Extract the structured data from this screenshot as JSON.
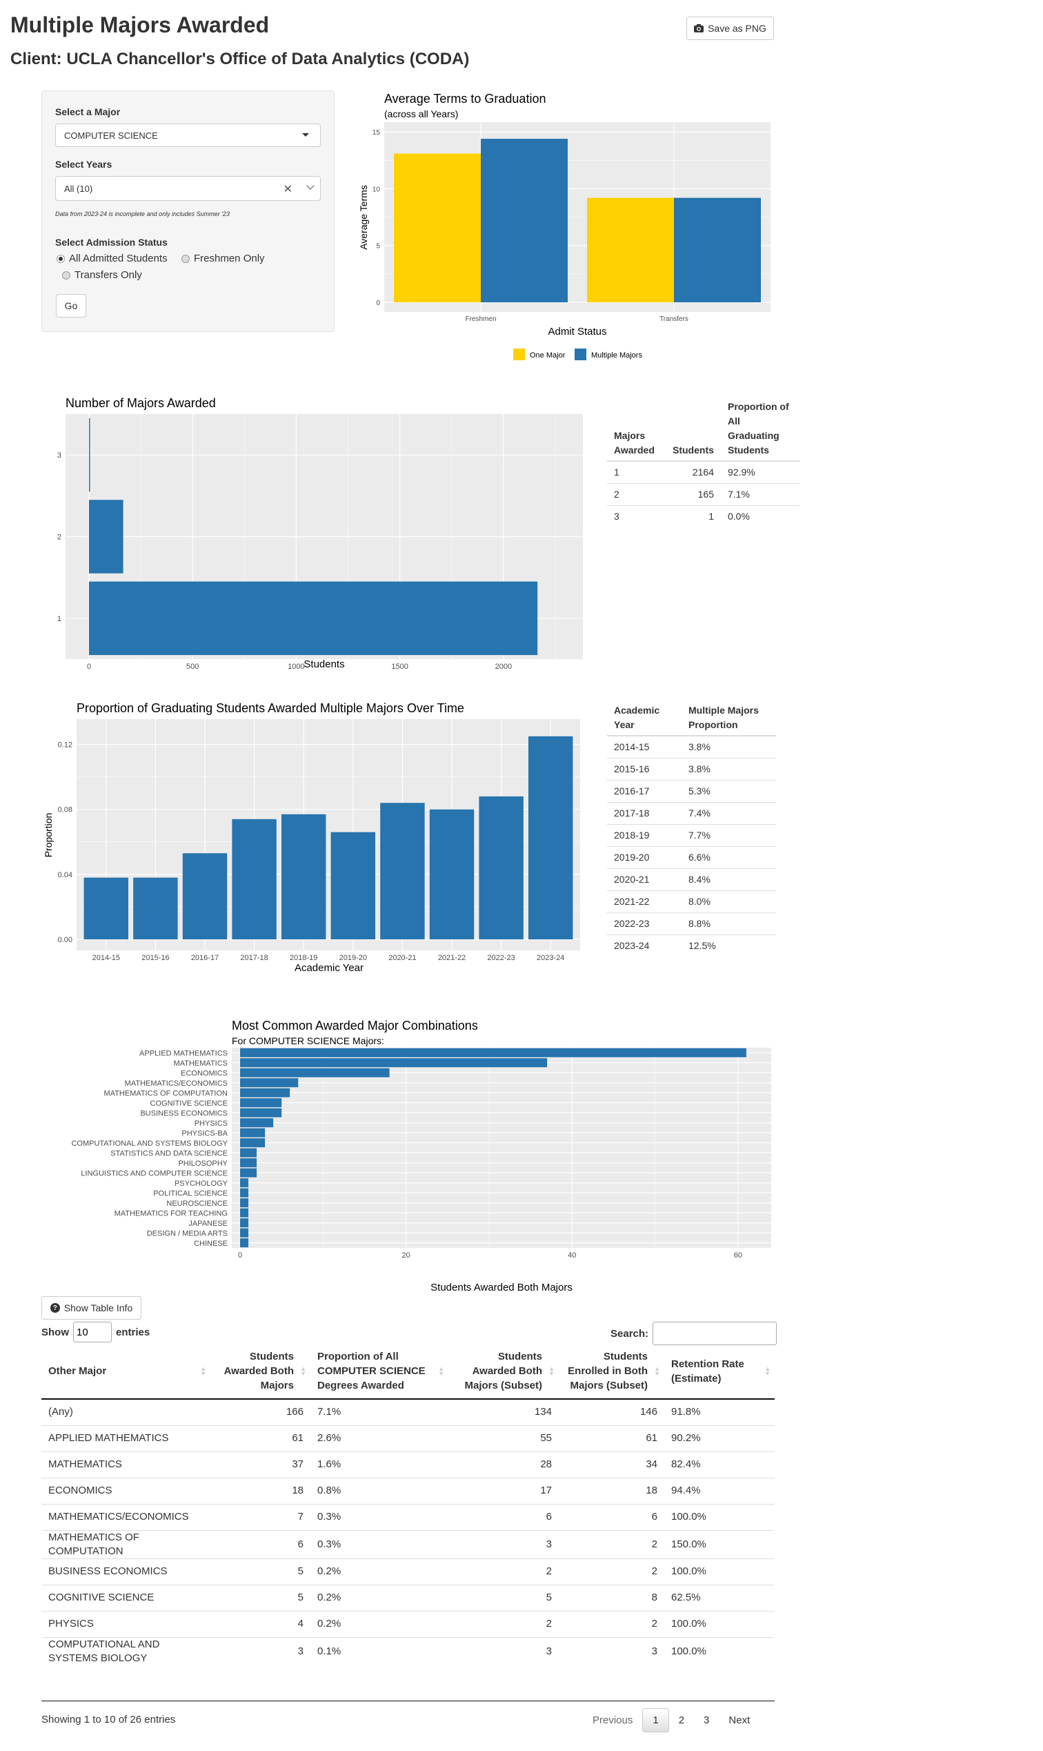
{
  "page": {
    "title": "Multiple Majors Awarded",
    "subtitle": "Client: UCLA Chancellor's Office of Data Analytics (CODA)",
    "save_label": "Save as PNG"
  },
  "sidebar": {
    "major_label": "Select a Major",
    "major_value": "COMPUTER SCIENCE",
    "years_label": "Select Years",
    "years_value": "All (10)",
    "note": "Data from 2023-24 is incomplete and only includes Summer '23",
    "admission_label": "Select Admission Status",
    "options": [
      "All Admitted Students",
      "Freshmen Only",
      "Transfers Only"
    ],
    "selected_option": "All Admitted Students",
    "go_label": "Go"
  },
  "icons": {
    "camera": "camera-icon",
    "caret": "caret-down-icon",
    "clear": "clear-icon",
    "chevron": "chevron-down-icon",
    "question": "question-circle-icon",
    "sort": "sort-icon"
  },
  "colors": {
    "gold": "#FFD100",
    "blue": "#2774AE",
    "panel_bg": "#EBEBEB"
  },
  "chart_data": [
    {
      "type": "bar",
      "title": "Average Terms to Graduation",
      "subtitle": "(across all Years)",
      "xlabel": "Admit Status",
      "ylabel": "Average Terms",
      "categories": [
        "Freshmen",
        "Transfers"
      ],
      "series": [
        {
          "name": "One Major",
          "values": [
            13.1,
            9.2
          ]
        },
        {
          "name": "Multiple Majors",
          "values": [
            14.4,
            9.2
          ]
        }
      ],
      "yticks": [
        "0",
        "5",
        "10",
        "15"
      ],
      "ylim": [
        0,
        15.5
      ],
      "legend": "bottom",
      "grid": true
    },
    {
      "type": "bar",
      "orientation": "horizontal",
      "title": "Number of Majors Awarded",
      "xlabel": "Students",
      "categories": [
        "1",
        "2",
        "3"
      ],
      "values": [
        2164,
        165,
        1
      ],
      "xticks": [
        "0",
        "500",
        "1000",
        "1500",
        "2000"
      ],
      "xlim": [
        0,
        2270
      ],
      "grid": true
    },
    {
      "type": "bar",
      "title": "Proportion of Graduating Students Awarded Multiple Majors Over Time",
      "xlabel": "Academic Year",
      "ylabel": "Proportion",
      "categories": [
        "2014-15",
        "2015-16",
        "2016-17",
        "2017-18",
        "2018-19",
        "2019-20",
        "2020-21",
        "2021-22",
        "2022-23",
        "2023-24"
      ],
      "values": [
        0.038,
        0.038,
        0.053,
        0.074,
        0.077,
        0.066,
        0.084,
        0.08,
        0.088,
        0.125
      ],
      "yticks": [
        "0.00",
        "0.04",
        "0.08",
        "0.12"
      ],
      "ylim": [
        0,
        0.133
      ],
      "grid": true
    },
    {
      "type": "bar",
      "orientation": "horizontal",
      "title": "Most Common Awarded Major Combinations",
      "subtitle": "For COMPUTER SCIENCE Majors:",
      "xlabel": "Students Awarded Both Majors",
      "categories": [
        "APPLIED MATHEMATICS",
        "MATHEMATICS",
        "ECONOMICS",
        "MATHEMATICS/ECONOMICS",
        "MATHEMATICS OF COMPUTATION",
        "COGNITIVE SCIENCE",
        "BUSINESS ECONOMICS",
        "PHYSICS",
        "PHYSICS-BA",
        "COMPUTATIONAL AND SYSTEMS BIOLOGY",
        "STATISTICS AND DATA SCIENCE",
        "PHILOSOPHY",
        "LINGUISTICS AND COMPUTER SCIENCE",
        "PSYCHOLOGY",
        "POLITICAL SCIENCE",
        "NEUROSCIENCE",
        "MATHEMATICS FOR TEACHING",
        "JAPANESE",
        "DESIGN / MEDIA ARTS",
        "CHINESE"
      ],
      "values": [
        61,
        37,
        18,
        7,
        6,
        5,
        5,
        4,
        3,
        3,
        2,
        2,
        2,
        1,
        1,
        1,
        1,
        1,
        1,
        1
      ],
      "xticks": [
        "0",
        "20",
        "40",
        "60"
      ],
      "xlim": [
        -1,
        64
      ],
      "grid": true
    }
  ],
  "majors_table": {
    "headers": [
      "Majors Awarded",
      "Students",
      "Proportion of All Graduating Students"
    ],
    "rows": [
      [
        "1",
        "2164",
        "92.9%"
      ],
      [
        "2",
        "165",
        "7.1%"
      ],
      [
        "3",
        "1",
        "0.0%"
      ]
    ]
  },
  "year_table": {
    "headers": [
      "Academic Year",
      "Multiple Majors Proportion"
    ],
    "rows": [
      [
        "2014-15",
        "3.8%"
      ],
      [
        "2015-16",
        "3.8%"
      ],
      [
        "2016-17",
        "5.3%"
      ],
      [
        "2017-18",
        "7.4%"
      ],
      [
        "2018-19",
        "7.7%"
      ],
      [
        "2019-20",
        "6.6%"
      ],
      [
        "2020-21",
        "8.4%"
      ],
      [
        "2021-22",
        "8.0%"
      ],
      [
        "2022-23",
        "8.8%"
      ],
      [
        "2023-24",
        "12.5%"
      ]
    ]
  },
  "combo_table": {
    "info_label": "Show Table Info",
    "show_label": "Show",
    "entries_value": "10",
    "entries_label": "entries",
    "search_label": "Search:",
    "search_value": "",
    "headers": [
      "Other Major",
      "Students Awarded Both Majors",
      "Proportion of All COMPUTER SCIENCE Degrees Awarded",
      "Students Awarded Both Majors (Subset)",
      "Students Enrolled in Both Majors (Subset)",
      "Retention Rate (Estimate)"
    ],
    "rows": [
      [
        "(Any)",
        "166",
        "7.1%",
        "134",
        "146",
        "91.8%"
      ],
      [
        "APPLIED MATHEMATICS",
        "61",
        "2.6%",
        "55",
        "61",
        "90.2%"
      ],
      [
        "MATHEMATICS",
        "37",
        "1.6%",
        "28",
        "34",
        "82.4%"
      ],
      [
        "ECONOMICS",
        "18",
        "0.8%",
        "17",
        "18",
        "94.4%"
      ],
      [
        "MATHEMATICS/ECONOMICS",
        "7",
        "0.3%",
        "6",
        "6",
        "100.0%"
      ],
      [
        "MATHEMATICS OF COMPUTATION",
        "6",
        "0.3%",
        "3",
        "2",
        "150.0%"
      ],
      [
        "BUSINESS ECONOMICS",
        "5",
        "0.2%",
        "2",
        "2",
        "100.0%"
      ],
      [
        "COGNITIVE SCIENCE",
        "5",
        "0.2%",
        "5",
        "8",
        "62.5%"
      ],
      [
        "PHYSICS",
        "4",
        "0.2%",
        "2",
        "2",
        "100.0%"
      ],
      [
        "COMPUTATIONAL AND SYSTEMS BIOLOGY",
        "3",
        "0.1%",
        "3",
        "3",
        "100.0%"
      ]
    ],
    "info": "Showing 1 to 10 of 26 entries",
    "pager": {
      "previous": "Previous",
      "pages": [
        "1",
        "2",
        "3"
      ],
      "current": "1",
      "next": "Next"
    }
  }
}
